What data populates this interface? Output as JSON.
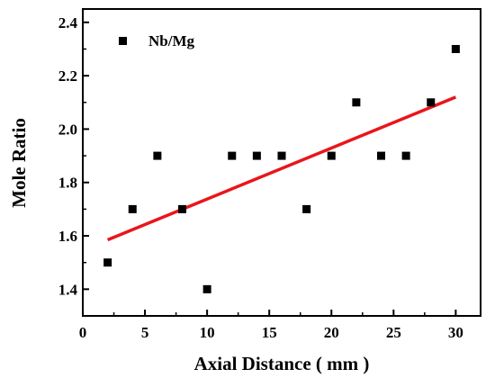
{
  "chart_data": {
    "type": "scatter",
    "xlabel": "Axial Distance ( mm )",
    "ylabel": "Mole Ratio",
    "xlim": [
      0,
      32
    ],
    "ylim": [
      1.3,
      2.45
    ],
    "x_ticks": [
      0,
      5,
      10,
      15,
      20,
      25,
      30
    ],
    "y_ticks": [
      1.4,
      1.6,
      1.8,
      2.0,
      2.2,
      2.4
    ],
    "x_tick_labels": [
      "0",
      "5",
      "10",
      "15",
      "20",
      "25",
      "30"
    ],
    "y_tick_labels": [
      "1.4",
      "1.6",
      "1.8",
      "2.0",
      "2.2",
      "2.4"
    ],
    "grid": false,
    "legend": {
      "position": "top-left"
    },
    "series": [
      {
        "name": "Nb/Mg",
        "marker": "square",
        "color": "#000000",
        "x": [
          2,
          4,
          6,
          8,
          10,
          12,
          14,
          16,
          18,
          20,
          22,
          24,
          26,
          28,
          30
        ],
        "y": [
          1.5,
          1.7,
          1.9,
          1.7,
          1.4,
          1.9,
          1.9,
          1.9,
          1.7,
          1.9,
          2.1,
          1.9,
          1.9,
          2.1,
          2.3
        ]
      }
    ],
    "fit_line": {
      "color": "#e8161b",
      "x": [
        2,
        30
      ],
      "y": [
        1.585,
        2.12
      ]
    }
  }
}
